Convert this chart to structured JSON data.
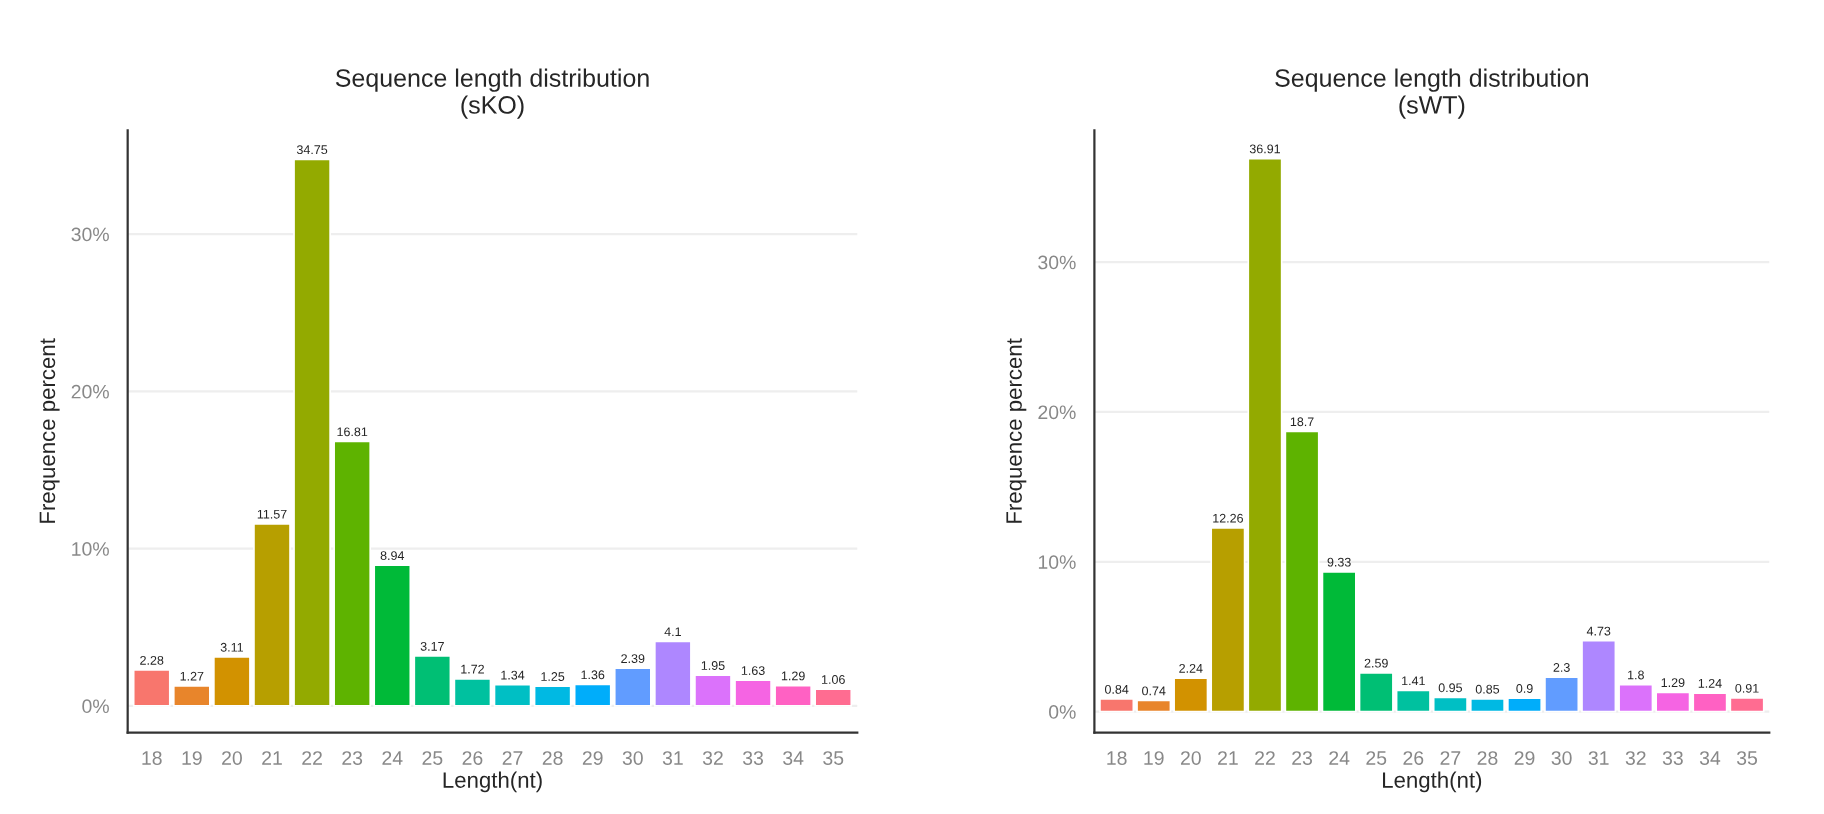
{
  "chart_data": [
    {
      "type": "bar",
      "title": "Sequence length distribution\n(sKO)",
      "xlabel": "Length(nt)",
      "ylabel": "Frequence percent",
      "categories": [
        "18",
        "19",
        "20",
        "21",
        "22",
        "23",
        "24",
        "25",
        "26",
        "27",
        "28",
        "29",
        "30",
        "31",
        "32",
        "33",
        "34",
        "35"
      ],
      "values": [
        2.28,
        1.27,
        3.11,
        11.57,
        34.75,
        16.81,
        8.94,
        3.17,
        1.72,
        1.34,
        1.25,
        1.36,
        2.39,
        4.1,
        1.95,
        1.63,
        1.29,
        1.06
      ],
      "colors": [
        "#F8766D",
        "#E8852B",
        "#D29200",
        "#B79F00",
        "#93AA00",
        "#5EB300",
        "#00BA38",
        "#00BF74",
        "#00C19F",
        "#00BFC4",
        "#00B9E3",
        "#00ADFA",
        "#619CFF",
        "#AE87FF",
        "#DB72FB",
        "#F564E3",
        "#FF61C3",
        "#FF6C91"
      ],
      "ylim": [
        -1.7,
        36.6
      ],
      "yticks": [
        {
          "value": 0,
          "label": "0%"
        },
        {
          "value": 10,
          "label": "10%"
        },
        {
          "value": 20,
          "label": "20%"
        },
        {
          "value": 30,
          "label": "30%"
        }
      ],
      "grid": "y",
      "data_labels": true
    },
    {
      "type": "bar",
      "title": "Sequence length distribution\n(sWT)",
      "xlabel": "Length(nt)",
      "ylabel": "Frequence percent",
      "categories": [
        "18",
        "19",
        "20",
        "21",
        "22",
        "23",
        "24",
        "25",
        "26",
        "27",
        "28",
        "29",
        "30",
        "31",
        "32",
        "33",
        "34",
        "35"
      ],
      "values": [
        0.84,
        0.74,
        2.24,
        12.26,
        36.91,
        18.7,
        9.33,
        2.59,
        1.41,
        0.95,
        0.85,
        0.9,
        2.3,
        4.73,
        1.8,
        1.29,
        1.24,
        0.91
      ],
      "colors": [
        "#F8766D",
        "#E8852B",
        "#D29200",
        "#B79F00",
        "#93AA00",
        "#5EB300",
        "#00BA38",
        "#00BF74",
        "#00C19F",
        "#00BFC4",
        "#00B9E3",
        "#00ADFA",
        "#619CFF",
        "#AE87FF",
        "#DB72FB",
        "#F564E3",
        "#FF61C3",
        "#FF6C91"
      ],
      "ylim": [
        -1.4,
        38.8
      ],
      "yticks": [
        {
          "value": 0,
          "label": "0%"
        },
        {
          "value": 10,
          "label": "10%"
        },
        {
          "value": 20,
          "label": "20%"
        },
        {
          "value": 30,
          "label": "30%"
        }
      ],
      "grid": "y",
      "data_labels": true
    }
  ]
}
